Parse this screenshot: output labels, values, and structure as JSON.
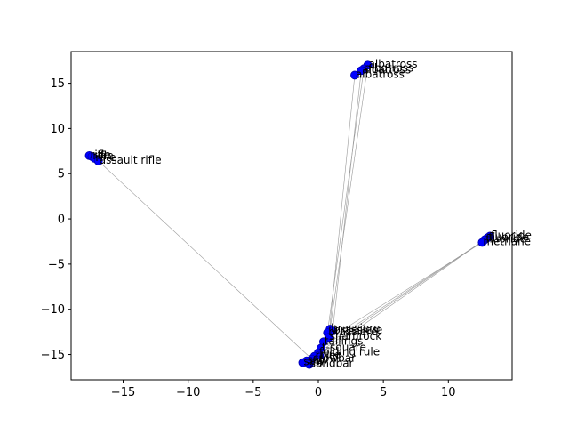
{
  "chart_data": {
    "type": "scatter",
    "title": "",
    "xlabel": "",
    "ylabel": "",
    "xlim": [
      -19.0,
      14.9
    ],
    "ylim": [
      -17.8,
      18.5
    ],
    "xticks": [
      -15,
      -10,
      -5,
      0,
      5,
      10
    ],
    "yticks": [
      -15,
      -10,
      -5,
      0,
      5,
      10,
      15
    ],
    "xtick_labels": [
      "−15",
      "−10",
      "−5",
      "0",
      "5",
      "10"
    ],
    "ytick_labels": [
      "−15",
      "−10",
      "−5",
      "0",
      "5",
      "10",
      "15"
    ],
    "grid": false,
    "marker_color": "#0000ff",
    "line_color": "#999999",
    "points": [
      {
        "label": "albatross",
        "x": 3.8,
        "y": 17.0
      },
      {
        "label": "albatross",
        "x": 3.5,
        "y": 16.6
      },
      {
        "label": "albatross",
        "x": 3.3,
        "y": 16.4
      },
      {
        "label": "albatross",
        "x": 2.8,
        "y": 15.9
      },
      {
        "label": "rifle",
        "x": -17.6,
        "y": 7.0
      },
      {
        "label": "rifle",
        "x": -17.4,
        "y": 6.9
      },
      {
        "label": "rifle",
        "x": -17.2,
        "y": 6.7
      },
      {
        "label": "assault rifle",
        "x": -16.9,
        "y": 6.4
      },
      {
        "label": "fluoride",
        "x": 13.2,
        "y": -1.9
      },
      {
        "label": "fluoride",
        "x": 13.0,
        "y": -2.1
      },
      {
        "label": "fluoride",
        "x": 12.8,
        "y": -2.3
      },
      {
        "label": "methane",
        "x": 12.6,
        "y": -2.6
      },
      {
        "label": "brassiere",
        "x": 0.9,
        "y": -12.2
      },
      {
        "label": "brassiere",
        "x": 1.1,
        "y": -12.4
      },
      {
        "label": "brassiere",
        "x": 0.7,
        "y": -12.6
      },
      {
        "label": "shamrock",
        "x": 0.8,
        "y": -13.1
      },
      {
        "label": "tailings",
        "x": 0.4,
        "y": -13.6
      },
      {
        "label": "t-square",
        "x": 0.2,
        "y": -14.3
      },
      {
        "label": "folding rule",
        "x": 0.0,
        "y": -14.8
      },
      {
        "label": "rule",
        "x": 0.1,
        "y": -15.1
      },
      {
        "label": "ruler",
        "x": -0.3,
        "y": -15.2
      },
      {
        "label": "crowbar",
        "x": -0.5,
        "y": -15.5
      },
      {
        "label": "saw",
        "x": -0.9,
        "y": -15.7
      },
      {
        "label": "saw",
        "x": -1.2,
        "y": -15.9
      },
      {
        "label": "sandbar",
        "x": -0.7,
        "y": -16.1
      }
    ],
    "lines": [
      {
        "from": [
          3.8,
          17.0
        ],
        "to": [
          0.9,
          -12.2
        ]
      },
      {
        "from": [
          3.5,
          16.6
        ],
        "to": [
          0.7,
          -12.6
        ]
      },
      {
        "from": [
          3.3,
          16.4
        ],
        "to": [
          1.1,
          -12.4
        ]
      },
      {
        "from": [
          2.8,
          15.9
        ],
        "to": [
          0.8,
          -13.1
        ]
      },
      {
        "from": [
          -16.9,
          6.4
        ],
        "to": [
          -0.5,
          -15.5
        ]
      },
      {
        "from": [
          12.6,
          -2.6
        ],
        "to": [
          0.4,
          -13.6
        ]
      },
      {
        "from": [
          12.8,
          -2.3
        ],
        "to": [
          0.2,
          -14.3
        ]
      },
      {
        "from": [
          13.0,
          -2.1
        ],
        "to": [
          0.1,
          -15.1
        ]
      },
      {
        "from": [
          13.2,
          -1.9
        ],
        "to": [
          0.0,
          -14.8
        ]
      }
    ]
  }
}
